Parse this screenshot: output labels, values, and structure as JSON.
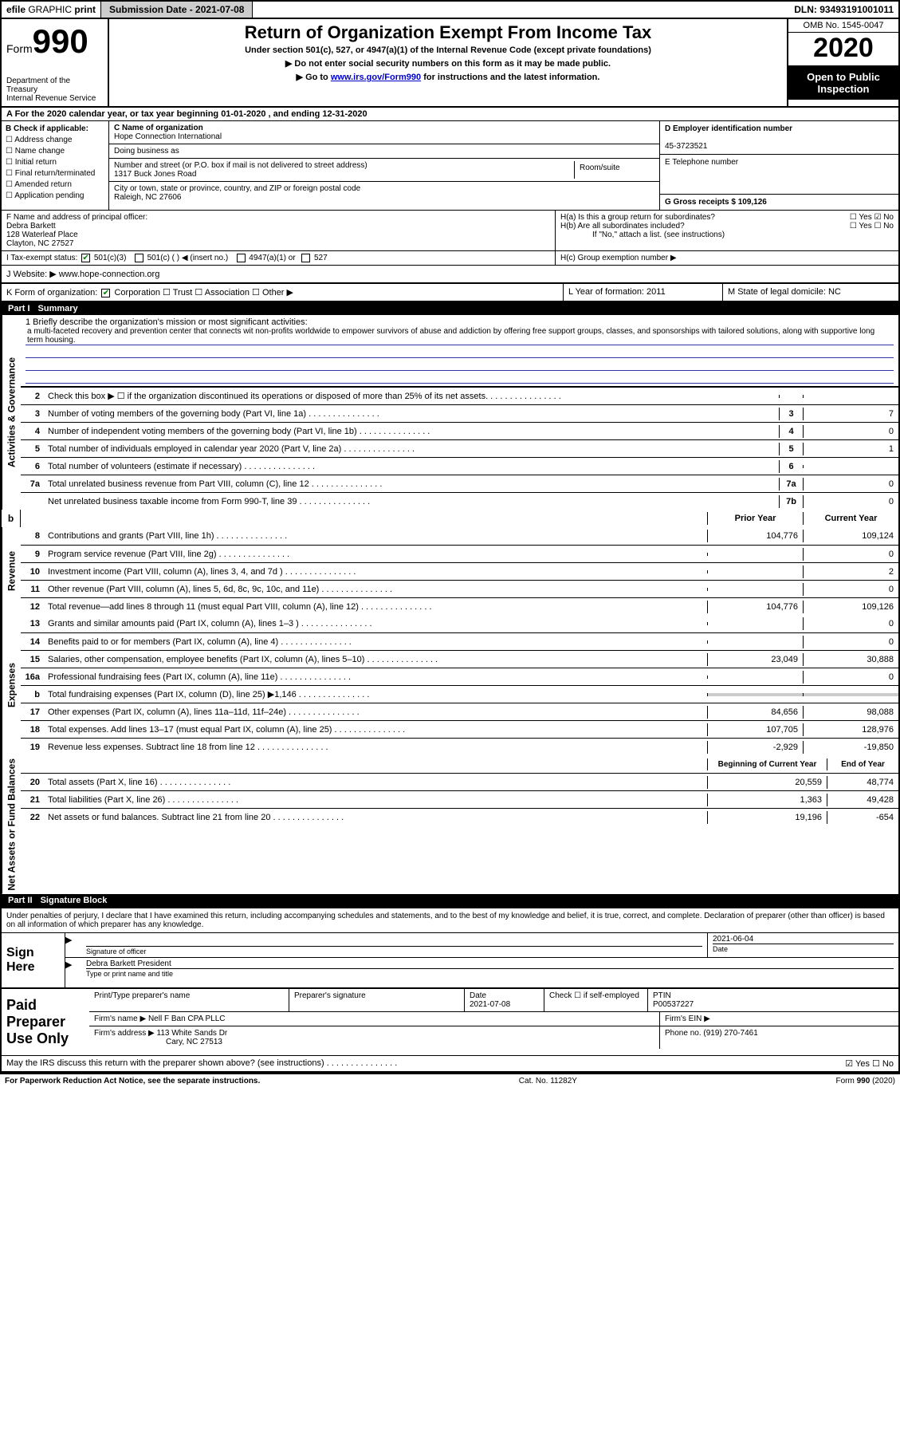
{
  "topbar": {
    "efile_label": "efile GRAPHIC print",
    "sub_date_label": "Submission Date - 2021-07-08",
    "dln_label": "DLN: 93493191001011"
  },
  "title": {
    "form_prefix": "Form",
    "form_number": "990",
    "dept": "Department of the Treasury\nInternal Revenue Service",
    "main": "Return of Organization Exempt From Income Tax",
    "sub1": "Under section 501(c), 527, or 4947(a)(1) of the Internal Revenue Code (except private foundations)",
    "sub2": "▶ Do not enter social security numbers on this form as it may be made public.",
    "sub3_pre": "▶ Go to ",
    "sub3_link": "www.irs.gov/Form990",
    "sub3_post": " for instructions and the latest information.",
    "omb": "OMB No. 1545-0047",
    "year": "2020",
    "inspect": "Open to Public Inspection"
  },
  "period": "A For the 2020 calendar year, or tax year beginning 01-01-2020     , and ending 12-31-2020",
  "boxB": {
    "head": "B Check if applicable:",
    "opts": [
      "Address change",
      "Name change",
      "Initial return",
      "Final return/terminated",
      "Amended return",
      "Application pending"
    ]
  },
  "boxC": {
    "name_lbl": "C Name of organization",
    "name_val": "Hope Connection International",
    "dba_lbl": "Doing business as",
    "street_lbl": "Number and street (or P.O. box if mail is not delivered to street address)",
    "street_val": "1317 Buck Jones Road",
    "room_lbl": "Room/suite",
    "city_lbl": "City or town, state or province, country, and ZIP or foreign postal code",
    "city_val": "Raleigh, NC  27606"
  },
  "boxD": {
    "ein_lbl": "D Employer identification number",
    "ein_val": "45-3723521",
    "phone_lbl": "E Telephone number",
    "gross_lbl": "G Gross receipts $ 109,126"
  },
  "boxF": {
    "lbl": "F  Name and address of principal officer:",
    "name": "Debra Barkett",
    "addr1": "128 Waterleaf Place",
    "addr2": "Clayton, NC  27527"
  },
  "boxH": {
    "a": "H(a)  Is this a group return for subordinates?",
    "a_yn": "☐ Yes  ☑ No",
    "b": "H(b)  Are all subordinates included?",
    "b_yn": "☐ Yes  ☐ No",
    "b_note": "If \"No,\" attach a list. (see instructions)",
    "c": "H(c)  Group exemption number ▶"
  },
  "taxI": {
    "lbl": "I     Tax-exempt status:",
    "c3": "501(c)(3)",
    "c": "501(c) (  ) ◀ (insert no.)",
    "t4947": "4947(a)(1) or",
    "t527": "527"
  },
  "boxJ": {
    "lbl": "J    Website: ▶",
    "val": "www.hope-connection.org"
  },
  "klm": {
    "k_lbl": "K Form of organization:",
    "k_opts": "Corporation   ☐ Trust   ☐ Association   ☐ Other ▶",
    "l_lbl": "L Year of formation: 2011",
    "m_lbl": "M State of legal domicile: NC"
  },
  "part1": {
    "num": "Part I",
    "title": "Summary"
  },
  "activities_tab": "Activities & Governance",
  "revenue_tab": "Revenue",
  "expenses_tab": "Expenses",
  "netassets_tab": "Net Assets or Fund Balances",
  "mission": {
    "lbl": "1  Briefly describe the organization's mission or most significant activities:",
    "text": "a multi-faceted recovery and prevention center that connects wit non-profits worldwide to empower survivors of abuse and addiction by offering free support groups, classes, and sponsorships with tailored solutions, along with supportive long term housing."
  },
  "act_lines": [
    {
      "n": "2",
      "t": "Check this box ▶ ☐  if the organization discontinued its operations or disposed of more than 25% of its net assets.",
      "box": "",
      "v": ""
    },
    {
      "n": "3",
      "t": "Number of voting members of the governing body (Part VI, line 1a)",
      "box": "3",
      "v": "7"
    },
    {
      "n": "4",
      "t": "Number of independent voting members of the governing body (Part VI, line 1b)",
      "box": "4",
      "v": "0"
    },
    {
      "n": "5",
      "t": "Total number of individuals employed in calendar year 2020 (Part V, line 2a)",
      "box": "5",
      "v": "1"
    },
    {
      "n": "6",
      "t": "Total number of volunteers (estimate if necessary)",
      "box": "6",
      "v": ""
    },
    {
      "n": "7a",
      "t": "Total unrelated business revenue from Part VIII, column (C), line 12",
      "box": "7a",
      "v": "0"
    },
    {
      "n": "",
      "t": "Net unrelated business taxable income from Form 990-T, line 39",
      "box": "7b",
      "v": "0"
    }
  ],
  "yr_head": {
    "py": "Prior Year",
    "cy": "Current Year"
  },
  "rev_lines": [
    {
      "n": "8",
      "t": "Contributions and grants (Part VIII, line 1h)",
      "py": "104,776",
      "cy": "109,124"
    },
    {
      "n": "9",
      "t": "Program service revenue (Part VIII, line 2g)",
      "py": "",
      "cy": "0"
    },
    {
      "n": "10",
      "t": "Investment income (Part VIII, column (A), lines 3, 4, and 7d )",
      "py": "",
      "cy": "2"
    },
    {
      "n": "11",
      "t": "Other revenue (Part VIII, column (A), lines 5, 6d, 8c, 9c, 10c, and 11e)",
      "py": "",
      "cy": "0"
    },
    {
      "n": "12",
      "t": "Total revenue—add lines 8 through 11 (must equal Part VIII, column (A), line 12)",
      "py": "104,776",
      "cy": "109,126"
    }
  ],
  "exp_lines": [
    {
      "n": "13",
      "t": "Grants and similar amounts paid (Part IX, column (A), lines 1–3 )",
      "py": "",
      "cy": "0"
    },
    {
      "n": "14",
      "t": "Benefits paid to or for members (Part IX, column (A), line 4)",
      "py": "",
      "cy": "0"
    },
    {
      "n": "15",
      "t": "Salaries, other compensation, employee benefits (Part IX, column (A), lines 5–10)",
      "py": "23,049",
      "cy": "30,888"
    },
    {
      "n": "16a",
      "t": "Professional fundraising fees (Part IX, column (A), line 11e)",
      "py": "",
      "cy": "0"
    },
    {
      "n": "b",
      "t": "Total fundraising expenses (Part IX, column (D), line 25) ▶1,146",
      "py": "GRAY",
      "cy": "GRAY"
    },
    {
      "n": "17",
      "t": "Other expenses (Part IX, column (A), lines 11a–11d, 11f–24e)",
      "py": "84,656",
      "cy": "98,088"
    },
    {
      "n": "18",
      "t": "Total expenses. Add lines 13–17 (must equal Part IX, column (A), line 25)",
      "py": "107,705",
      "cy": "128,976"
    },
    {
      "n": "19",
      "t": "Revenue less expenses. Subtract line 18 from line 12",
      "py": "-2,929",
      "cy": "-19,850"
    }
  ],
  "boy_head": {
    "py": "Beginning of Current Year",
    "cy": "End of Year"
  },
  "na_lines": [
    {
      "n": "20",
      "t": "Total assets (Part X, line 16)",
      "py": "20,559",
      "cy": "48,774"
    },
    {
      "n": "21",
      "t": "Total liabilities (Part X, line 26)",
      "py": "1,363",
      "cy": "49,428"
    },
    {
      "n": "22",
      "t": "Net assets or fund balances. Subtract line 21 from line 20",
      "py": "19,196",
      "cy": "-654"
    }
  ],
  "part2": {
    "num": "Part II",
    "title": "Signature Block"
  },
  "decl": "Under penalties of perjury, I declare that I have examined this return, including accompanying schedules and statements, and to the best of my knowledge and belief, it is true, correct, and complete. Declaration of preparer (other than officer) is based on all information of which preparer has any knowledge.",
  "sign": {
    "here": "Sign Here",
    "sig_lbl": "Signature of officer",
    "date_val": "2021-06-04",
    "date_lbl": "Date",
    "name_val": "Debra Barkett President",
    "name_lbl": "Type or print name and title"
  },
  "prep": {
    "title": "Paid Preparer Use Only",
    "h_name": "Print/Type preparer's name",
    "h_sig": "Preparer's signature",
    "h_date": "Date",
    "date_val": "2021-07-08",
    "h_check": "Check ☐ if self-employed",
    "h_ptin": "PTIN",
    "ptin_val": "P00537227",
    "firm_lbl": "Firm's name     ▶",
    "firm_val": "Nell F Ban CPA PLLC",
    "ein_lbl": "Firm's EIN ▶",
    "addr_lbl": "Firm's address ▶",
    "addr_val1": "113 White Sands Dr",
    "addr_val2": "Cary, NC  27513",
    "phone_lbl": "Phone no. (919) 270-7461"
  },
  "discuss": {
    "q": "May the IRS discuss this return with the preparer shown above? (see instructions)",
    "yn": "☑ Yes   ☐ No"
  },
  "footer": {
    "left": "For Paperwork Reduction Act Notice, see the separate instructions.",
    "mid": "Cat. No. 11282Y",
    "right": "Form 990 (2020)"
  }
}
